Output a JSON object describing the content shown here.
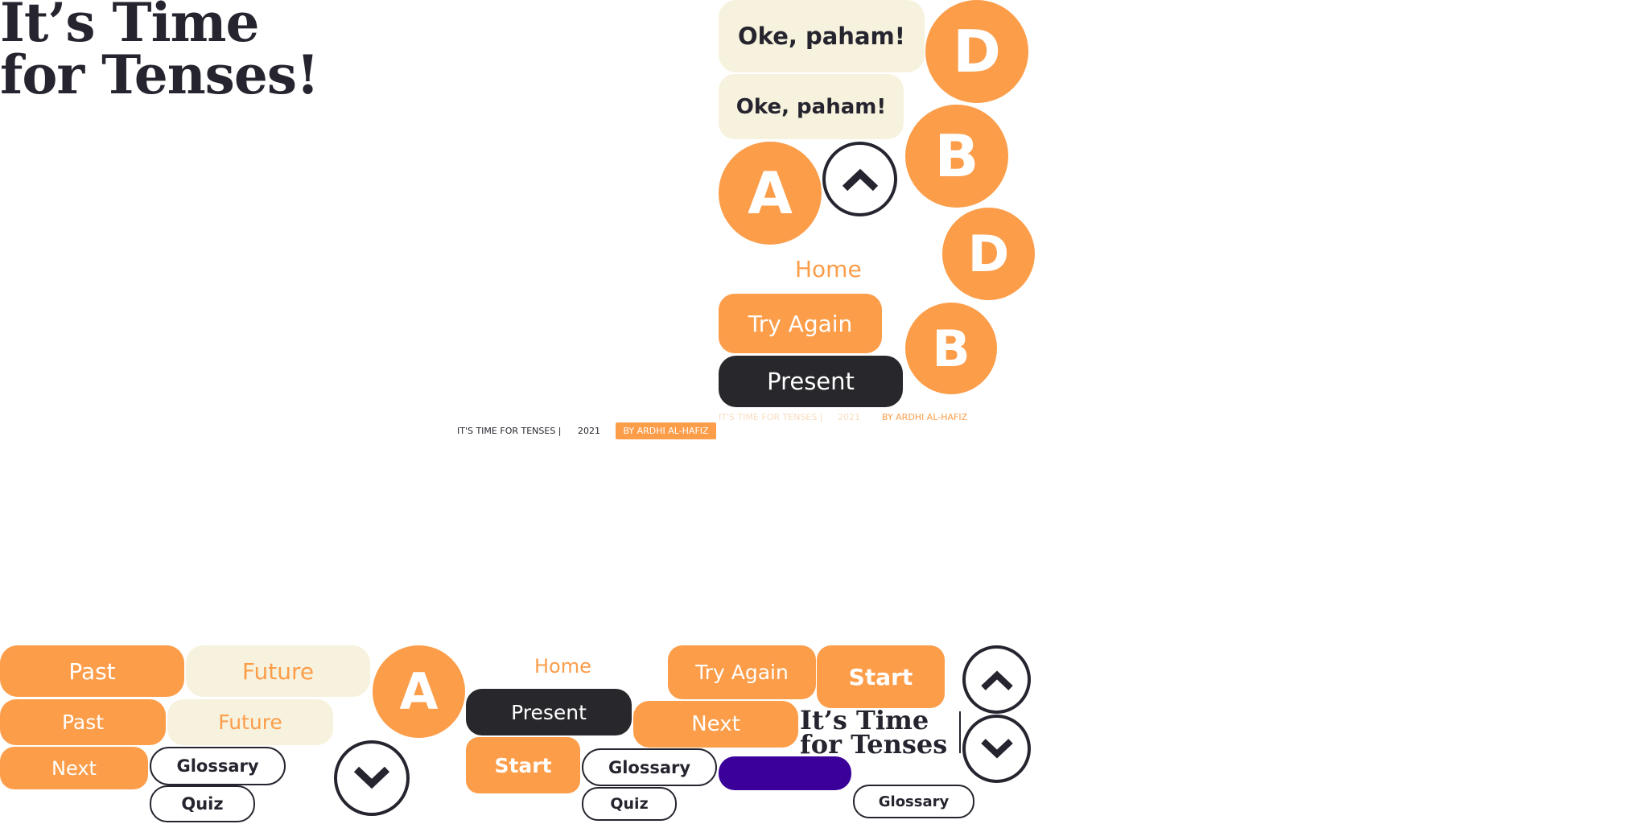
{
  "hero": {
    "title_line1": "It’s Time",
    "title_line2": "for Tenses!"
  },
  "small_title": {
    "line1": "It’s Time",
    "line2": "for Tenses"
  },
  "buttons": {
    "oke": "Oke, paham!",
    "home": "Home",
    "try_again": "Try Again",
    "present": "Present",
    "past": "Past",
    "future": "Future",
    "next": "Next",
    "glossary": "Glossary",
    "quiz": "Quiz",
    "start": "Start"
  },
  "answers": {
    "a": "A",
    "b": "B",
    "d": "D"
  },
  "footer": {
    "site_name": "IT'S TIME FOR TENSES  |",
    "year": "2021",
    "author": "BY ARDHI AL-HAFIZ",
    "faded_site_name": "IT'S TIME FOR TENSES  |",
    "faded_year": "2021",
    "faded_author": "BY ARDHI AL-HAFIZ"
  },
  "icons": {
    "up": "chevron-up-icon",
    "down": "chevron-down-icon"
  },
  "colors": {
    "orange": "#fc9d4a",
    "cream": "#f7f2de",
    "dark": "#28272c",
    "navy": "#26252f",
    "purple": "#3a0099"
  }
}
